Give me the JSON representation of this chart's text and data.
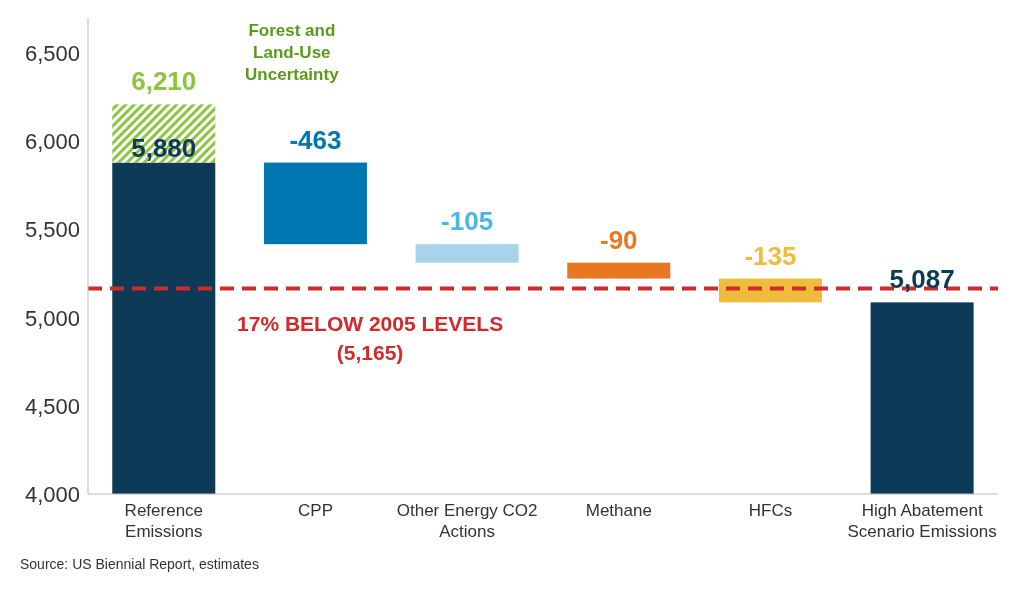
{
  "chart_data": {
    "type": "bar",
    "categories": [
      "Reference Emissions",
      "CPP",
      "Other Energy CO2 Actions",
      "Methane",
      "HFCs",
      "High Abatement Scenario Emissions"
    ],
    "series": [
      {
        "values": [
          5880,
          -463,
          -105,
          -90,
          -135,
          5087
        ],
        "colors": [
          "#0d3a56",
          "#0077b0",
          "#a9d3ec",
          "#e87722",
          "#f0bc3c",
          "#0d3a56"
        ],
        "base": [
          null,
          5880,
          5417,
          5312,
          5222,
          null
        ],
        "value_labels": [
          "5,880",
          "-463",
          "-105",
          "-90",
          "-135",
          "5,087"
        ]
      },
      {
        "values": [
          330,
          null,
          null,
          null,
          null,
          null
        ],
        "color": "#8cc63f",
        "base": [
          5880,
          null,
          null,
          null,
          null,
          null
        ]
      }
    ],
    "ylim": [
      4000,
      6700
    ],
    "yticks": [
      {
        "value": 4000,
        "label": "4,000"
      },
      {
        "value": 4500,
        "label": "4,500"
      },
      {
        "value": 5000,
        "label": "5,000"
      },
      {
        "value": 5500,
        "label": "5,500"
      },
      {
        "value": 6000,
        "label": "6,000"
      },
      {
        "value": 6500,
        "label": "6,500"
      }
    ],
    "stacked": true,
    "totals": [
      "6,210",
      null,
      null,
      null,
      null,
      null
    ],
    "grid": false,
    "ref_lines": [
      {
        "axis": "y",
        "value": 5165,
        "label": "17% BELOW 2005 LEVELS\n(5,165)",
        "color": "#d02a2a",
        "line_style": "dashed"
      }
    ],
    "annotations": [
      "Forest and Land-Use Uncertainty",
      "Source: US Biennial Report, estimates"
    ]
  }
}
